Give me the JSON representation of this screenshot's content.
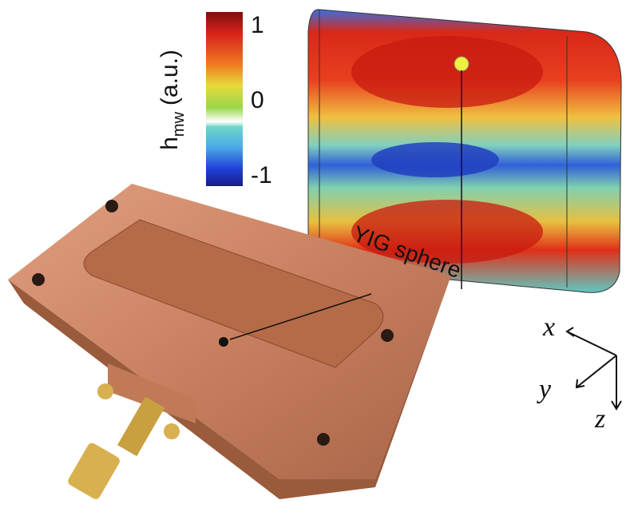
{
  "colorbar": {
    "label": "h",
    "subscript": "mw",
    "unit": "(a.u.)",
    "ticks": [
      1,
      0,
      -1
    ]
  },
  "annotation": "YIG sphere",
  "axes": {
    "x": "x",
    "y": "y",
    "z": "z"
  }
}
